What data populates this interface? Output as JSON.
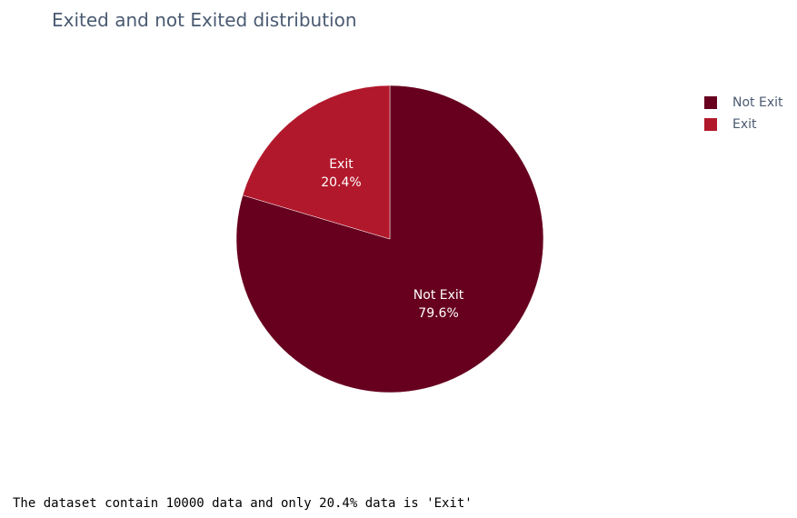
{
  "chart_data": {
    "type": "pie",
    "title": "Exited and not Exited distribution",
    "slices": [
      {
        "label": "Not Exit",
        "value": 79.6,
        "percent_text": "79.6%",
        "color": "#67001f"
      },
      {
        "label": "Exit",
        "value": 20.4,
        "percent_text": "20.4%",
        "color": "#b2182b"
      }
    ],
    "legend": {
      "placement": "top-right",
      "entries": [
        "Not Exit",
        "Exit"
      ]
    }
  },
  "output": {
    "text": "The dataset contain 10000 data and only 20.4% data is 'Exit'"
  }
}
